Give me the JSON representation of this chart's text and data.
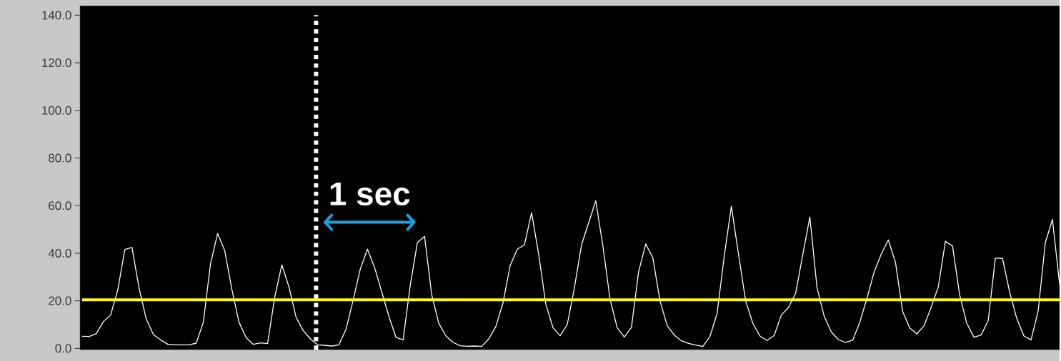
{
  "chart_data": {
    "type": "line",
    "categories": [
      null,
      null,
      null,
      null,
      null,
      null,
      null,
      null,
      null,
      null,
      null,
      null,
      null,
      null,
      null,
      null,
      null,
      null,
      null,
      null,
      null,
      null,
      null,
      null,
      null,
      null,
      null,
      null,
      null,
      null,
      null,
      null,
      null,
      null,
      null,
      null,
      null,
      null,
      null,
      null,
      null,
      null,
      null,
      null,
      null,
      null,
      null,
      null,
      null,
      null,
      null,
      null,
      null,
      null,
      null,
      null,
      null,
      null,
      null,
      null,
      null,
      null,
      null,
      null,
      null,
      null,
      null,
      null,
      null,
      null,
      null,
      null,
      null,
      null,
      null,
      null,
      null,
      null,
      null,
      null,
      null,
      null,
      null,
      null,
      null,
      null,
      null,
      null,
      null,
      null,
      null,
      null,
      null,
      null,
      null,
      null,
      null,
      null,
      null,
      null,
      null,
      null,
      null,
      null,
      null,
      null,
      null,
      null,
      null,
      null,
      null,
      null,
      null,
      null,
      null,
      null,
      null,
      null,
      null,
      null,
      null,
      null,
      null,
      null,
      null,
      null,
      null,
      null,
      null,
      null,
      null,
      null,
      null,
      null,
      null,
      null,
      null,
      null
    ],
    "series": [
      {
        "color": "#ffffff",
        "values": [
          5.1,
          5.0,
          6.2,
          11.3,
          14.0,
          24.5,
          41.6,
          42.4,
          25.1,
          12.3,
          5.8,
          3.6,
          1.8,
          1.5,
          1.5,
          1.5,
          2.2,
          11,
          35.5,
          48.3,
          41,
          24.7,
          11,
          4.5,
          1.7,
          2.3,
          2.0,
          21.5,
          35.1,
          25.8,
          13,
          7.5,
          4.0,
          1.5,
          1.3,
          1.0,
          1.5,
          8.1,
          20.4,
          33.4,
          41.7,
          34,
          23.7,
          13.5,
          4.6,
          3.6,
          26.7,
          44.5,
          47.1,
          22.5,
          10.5,
          5.2,
          2.5,
          1.1,
          0.9,
          1.0,
          0.8,
          4.0,
          9.2,
          19.2,
          34.8,
          41.7,
          43.5,
          57,
          39.5,
          18.5,
          8.7,
          5.3,
          10,
          25.4,
          43.5,
          52.8,
          62,
          42.9,
          20.7,
          8.7,
          4.8,
          8.9,
          32.2,
          43.9,
          38,
          20,
          9.6,
          5.6,
          3.2,
          2.1,
          1.4,
          0.8,
          5,
          14.7,
          38.7,
          59.7,
          39.6,
          20,
          10.6,
          5.2,
          3.3,
          5.4,
          14,
          17.2,
          23.1,
          39.2,
          55.2,
          25.6,
          13.6,
          6.9,
          3.7,
          2.5,
          3.4,
          11,
          21,
          32,
          39.6,
          45.6,
          36.2,
          15.6,
          8.6,
          6.1,
          9.5,
          17.3,
          25.8,
          45,
          43,
          22.4,
          10.5,
          4.7,
          5.6,
          11.7,
          38,
          37.8,
          23.7,
          12.6,
          5.2,
          3.6,
          15.7,
          44.4,
          54.2,
          27
        ]
      }
    ],
    "ylim": [
      -0.6,
      144
    ],
    "yticks": [
      {
        "value": 0,
        "label": "0.0"
      },
      {
        "value": 20,
        "label": "20.0"
      },
      {
        "value": 40,
        "label": "40.0"
      },
      {
        "value": 60,
        "label": "60.0"
      },
      {
        "value": 80,
        "label": "80.0"
      },
      {
        "value": 100,
        "label": "100.0"
      },
      {
        "value": 120,
        "label": "120.0"
      },
      {
        "value": 140,
        "label": "140.0"
      }
    ],
    "tick_labels": "y",
    "grid": false,
    "marker": "none",
    "line_style": "solid",
    "ref_lines": [
      {
        "axis": "y",
        "value": 20.4,
        "color": "#ffff00",
        "line_style": "solid"
      }
    ],
    "annotations": [
      "1 sec"
    ]
  }
}
